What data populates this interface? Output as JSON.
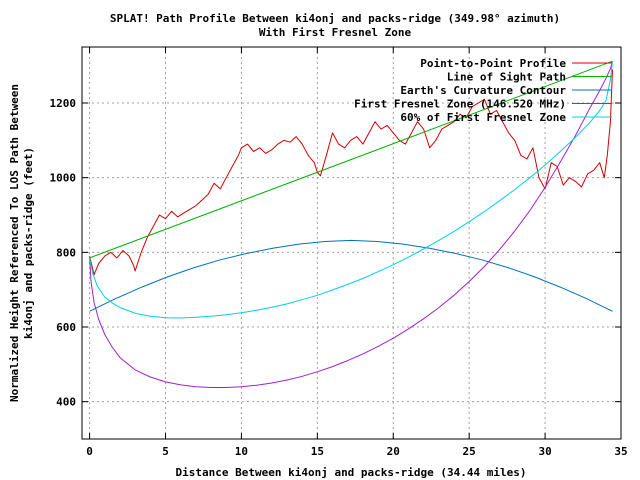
{
  "chart_data": {
    "type": "line",
    "title": "SPLAT! Path Profile Between ki4onj and packs-ridge (349.98° azimuth)",
    "subtitle": "With First Fresnel Zone",
    "xlabel": "Distance Between ki4onj and packs-ridge (34.44 miles)",
    "ylabel_line1": "Normalized Height Referenced To LOS Path Between",
    "ylabel_line2": "ki4onj and packs-ridge (feet)",
    "xlim": [
      -0.5,
      35
    ],
    "ylim": [
      300,
      1350
    ],
    "xticks": [
      0,
      5,
      10,
      15,
      20,
      25,
      30,
      35
    ],
    "yticks": [
      400,
      600,
      800,
      1000,
      1200
    ],
    "grid": true,
    "legend_position": "top-right",
    "series": [
      {
        "name": "Point-to-Point Profile",
        "color": "#d40000",
        "x": [
          0,
          0.3,
          0.6,
          1.0,
          1.4,
          1.8,
          2.2,
          2.6,
          2.9,
          3.0,
          3.4,
          3.8,
          4.2,
          4.6,
          5.0,
          5.4,
          5.8,
          6.2,
          6.6,
          7.0,
          7.4,
          7.8,
          8.2,
          8.6,
          9.0,
          9.4,
          9.8,
          10.0,
          10.4,
          10.8,
          11.2,
          11.6,
          12.0,
          12.4,
          12.8,
          13.2,
          13.6,
          14.0,
          14.4,
          14.8,
          15.0,
          15.2,
          15.6,
          16.0,
          16.4,
          16.8,
          17.2,
          17.6,
          18.0,
          18.4,
          18.8,
          19.2,
          19.6,
          20.0,
          20.4,
          20.8,
          21.2,
          21.6,
          22.0,
          22.4,
          22.8,
          23.2,
          23.6,
          24.0,
          24.4,
          24.8,
          25.2,
          25.6,
          26.0,
          26.4,
          26.8,
          27.2,
          27.6,
          28.0,
          28.4,
          28.8,
          29.2,
          29.6,
          30.0,
          30.4,
          30.8,
          31.2,
          31.6,
          32.0,
          32.4,
          32.8,
          33.2,
          33.6,
          33.9,
          34.1,
          34.3,
          34.44
        ],
        "values": [
          790,
          740,
          770,
          790,
          800,
          785,
          805,
          790,
          765,
          750,
          800,
          840,
          870,
          900,
          890,
          910,
          895,
          905,
          915,
          925,
          940,
          955,
          985,
          970,
          1000,
          1030,
          1060,
          1080,
          1090,
          1070,
          1080,
          1065,
          1075,
          1090,
          1100,
          1095,
          1110,
          1090,
          1060,
          1040,
          1015,
          1005,
          1060,
          1120,
          1090,
          1080,
          1100,
          1110,
          1090,
          1120,
          1150,
          1130,
          1140,
          1120,
          1100,
          1090,
          1120,
          1150,
          1130,
          1080,
          1100,
          1130,
          1140,
          1150,
          1170,
          1160,
          1190,
          1200,
          1210,
          1170,
          1180,
          1150,
          1120,
          1100,
          1060,
          1050,
          1080,
          1000,
          970,
          1040,
          1030,
          980,
          1000,
          990,
          975,
          1010,
          1020,
          1040,
          1000,
          1060,
          1150,
          1290
        ]
      },
      {
        "name": "Line of Sight Path",
        "color": "#00b000",
        "x": [
          0,
          34.44
        ],
        "values": [
          785,
          1312
        ]
      },
      {
        "name": "Earth's Curvature Contour",
        "color": "#0070c0",
        "x": [
          0,
          1.72,
          3.44,
          5.17,
          6.89,
          8.61,
          10.33,
          12.06,
          13.78,
          15.5,
          17.22,
          18.94,
          20.66,
          22.39,
          24.11,
          25.83,
          27.55,
          29.27,
          31.0,
          32.72,
          34.44
        ],
        "values": [
          642,
          676,
          707,
          735,
          759,
          780,
          797,
          811,
          822,
          829,
          832,
          829,
          822,
          811,
          797,
          780,
          759,
          735,
          707,
          676,
          642
        ]
      },
      {
        "name": "First Fresnel Zone (146.520 MHz)",
        "color": "#a020d0",
        "x": [
          0,
          0.1,
          0.3,
          0.6,
          1.0,
          1.5,
          2.0,
          3.0,
          4.0,
          5.0,
          6.0,
          7.0,
          8.0,
          9.0,
          10.0,
          11.0,
          12.0,
          13.0,
          14.0,
          15.0,
          16.0,
          17.0,
          18.0,
          19.0,
          20.0,
          21.0,
          22.0,
          23.0,
          24.0,
          25.0,
          26.0,
          27.0,
          28.0,
          29.0,
          30.0,
          31.0,
          32.0,
          33.0,
          33.5,
          34.0,
          34.3,
          34.44
        ],
        "values": [
          785,
          720,
          665,
          620,
          580,
          545,
          518,
          485,
          466,
          453,
          445,
          440,
          438,
          438,
          440,
          444,
          450,
          458,
          468,
          480,
          494,
          510,
          528,
          548,
          570,
          595,
          622,
          652,
          685,
          722,
          762,
          807,
          857,
          912,
          974,
          1042,
          1113,
          1190,
          1226,
          1265,
          1292,
          1312
        ]
      },
      {
        "name": "60% of First Fresnel Zone",
        "color": "#00d0e0",
        "x": [
          0,
          0.2,
          0.5,
          1.0,
          1.5,
          2.0,
          3.0,
          4.0,
          5.0,
          6.0,
          7.0,
          8.0,
          9.0,
          10.0,
          11.0,
          12.0,
          13.0,
          14.0,
          15.0,
          16.0,
          17.0,
          18.0,
          19.0,
          20.0,
          21.0,
          22.0,
          23.0,
          24.0,
          25.0,
          26.0,
          27.0,
          28.0,
          29.0,
          30.0,
          31.0,
          32.0,
          33.0,
          33.6,
          34.0,
          34.3,
          34.44
        ],
        "values": [
          785,
          745,
          710,
          680,
          664,
          652,
          637,
          629,
          625,
          624,
          626,
          629,
          633,
          638,
          645,
          653,
          662,
          673,
          685,
          699,
          714,
          730,
          748,
          767,
          787,
          809,
          832,
          856,
          882,
          909,
          938,
          968,
          1000,
          1034,
          1070,
          1108,
          1150,
          1180,
          1205,
          1262,
          1312
        ]
      }
    ]
  }
}
